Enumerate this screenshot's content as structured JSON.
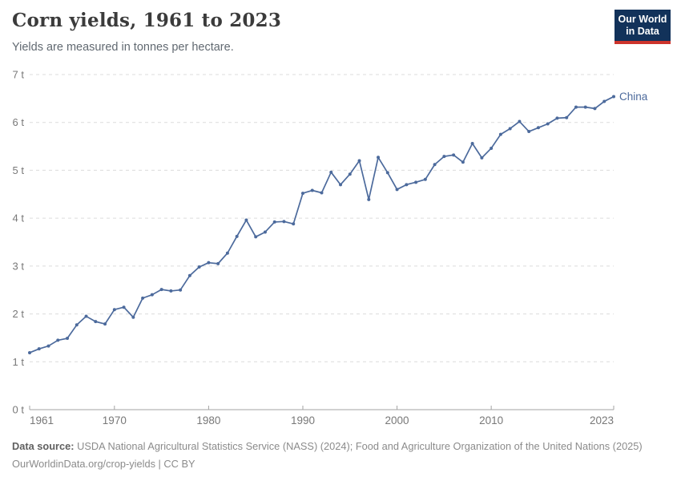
{
  "header": {
    "title": "Corn yields, 1961 to 2023",
    "subtitle": "Yields are measured in tonnes per hectare."
  },
  "logo": {
    "line1": "Our World",
    "line2": "in Data"
  },
  "chart_data": {
    "type": "line",
    "title": "Corn yields, 1961 to 2023",
    "xlabel": "",
    "ylabel": "tonnes per hectare",
    "x_range": [
      1961,
      2023
    ],
    "ylim": [
      0,
      7
    ],
    "grid": "horizontal-dashed",
    "legend_position": "end-of-line-label",
    "yticks": [
      {
        "value": 0,
        "label": "0 t"
      },
      {
        "value": 1,
        "label": "1 t"
      },
      {
        "value": 2,
        "label": "2 t"
      },
      {
        "value": 3,
        "label": "3 t"
      },
      {
        "value": 4,
        "label": "4 t"
      },
      {
        "value": 5,
        "label": "5 t"
      },
      {
        "value": 6,
        "label": "6 t"
      },
      {
        "value": 7,
        "label": "7 t"
      }
    ],
    "xticks": [
      {
        "value": 1961,
        "label": "1961"
      },
      {
        "value": 1970,
        "label": "1970"
      },
      {
        "value": 1980,
        "label": "1980"
      },
      {
        "value": 1990,
        "label": "1990"
      },
      {
        "value": 2000,
        "label": "2000"
      },
      {
        "value": 2010,
        "label": "2010"
      },
      {
        "value": 2023,
        "label": "2023"
      }
    ],
    "series": [
      {
        "name": "China",
        "color": "#4c6a9c",
        "years": [
          1961,
          1962,
          1963,
          1964,
          1965,
          1966,
          1967,
          1968,
          1969,
          1970,
          1971,
          1972,
          1973,
          1974,
          1975,
          1976,
          1977,
          1978,
          1979,
          1980,
          1981,
          1982,
          1983,
          1984,
          1985,
          1986,
          1987,
          1988,
          1989,
          1990,
          1991,
          1992,
          1993,
          1994,
          1995,
          1996,
          1997,
          1998,
          1999,
          2000,
          2001,
          2002,
          2003,
          2004,
          2005,
          2006,
          2007,
          2008,
          2009,
          2010,
          2011,
          2012,
          2013,
          2014,
          2015,
          2016,
          2017,
          2018,
          2019,
          2020,
          2021,
          2022,
          2023
        ],
        "values": [
          1.19,
          1.27,
          1.33,
          1.45,
          1.49,
          1.77,
          1.95,
          1.84,
          1.79,
          2.09,
          2.14,
          1.93,
          2.33,
          2.4,
          2.51,
          2.48,
          2.5,
          2.8,
          2.98,
          3.07,
          3.05,
          3.27,
          3.62,
          3.96,
          3.61,
          3.71,
          3.92,
          3.93,
          3.88,
          4.52,
          4.58,
          4.53,
          4.96,
          4.7,
          4.92,
          5.2,
          4.39,
          5.27,
          4.95,
          4.6,
          4.7,
          4.75,
          4.81,
          5.12,
          5.29,
          5.32,
          5.17,
          5.56,
          5.26,
          5.46,
          5.75,
          5.87,
          6.02,
          5.81,
          5.89,
          5.97,
          6.09,
          6.1,
          6.32,
          6.32,
          6.29,
          6.44,
          6.54
        ]
      }
    ]
  },
  "footer": {
    "source_label": "Data source:",
    "source_text": " USDA National Agricultural Statistics Service (NASS) (2024); Food and Agriculture Organization of the United Nations (2025)",
    "license_line": "OurWorldinData.org/crop-yields | CC BY"
  },
  "colors": {
    "line": "#4c6a9c",
    "grid": "#dcdcdc",
    "axis": "#a3a3a3",
    "tick_label": "#787878",
    "title": "#3b3b3b",
    "subtitle": "#616971",
    "footer": "#8b8b8b",
    "logo_bg": "#12325a",
    "logo_accent": "#cd342c"
  }
}
